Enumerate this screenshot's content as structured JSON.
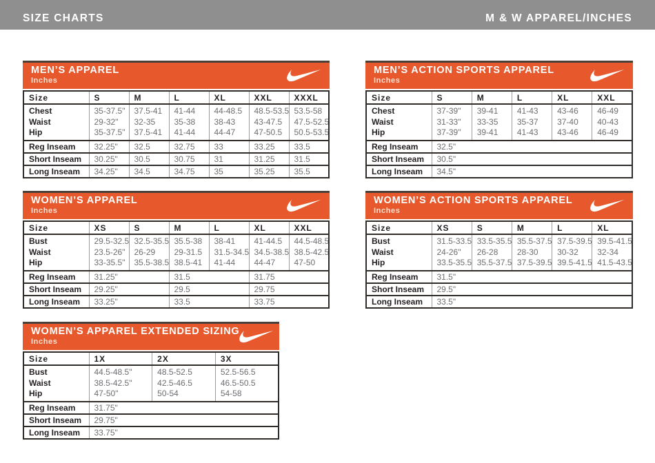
{
  "colors": {
    "accent_orange": "#e7582c",
    "bar_gray": "#8f8f8f",
    "border_dark": "#2e2b29",
    "grid_gray": "#9b9b9b",
    "label_text": "#231f20",
    "value_text": "#6d6e71"
  },
  "header": {
    "left": "SIZE CHARTS",
    "right": "M & W APPAREL/INCHES"
  },
  "logo_icon": "nike-swoosh-icon",
  "tables": [
    {
      "title": "MEN’S APPAREL",
      "subtitle": "Inches",
      "columns": [
        "Size",
        "S",
        "M",
        "L",
        "XL",
        "XXL",
        "XXXL"
      ],
      "measurements": {
        "labels": [
          "Chest",
          "Waist",
          "Hip"
        ],
        "values": [
          [
            "35-37.5\"",
            "29-32\"",
            "35-37.5\""
          ],
          [
            "37.5-41",
            "32-35",
            "37.5-41"
          ],
          [
            "41-44",
            "35-38",
            "41-44"
          ],
          [
            "44-48.5",
            "38-43",
            "44-47"
          ],
          [
            "48.5-53.5",
            "43-47.5",
            "47-50.5"
          ],
          [
            "53.5-58",
            "47.5-52.5",
            "50.5-53.5"
          ]
        ]
      },
      "inseams": [
        {
          "label": "Reg Inseam",
          "span": 1,
          "values": [
            "32.25\"",
            "32.5",
            "32.75",
            "33",
            "33.25",
            "33.5"
          ]
        },
        {
          "label": "Short Inseam",
          "span": 1,
          "values": [
            "30.25\"",
            "30.5",
            "30.75",
            "31",
            "31.25",
            "31.5"
          ]
        },
        {
          "label": "Long Inseam",
          "span": 1,
          "values": [
            "34.25\"",
            "34.5",
            "34.75",
            "35",
            "35.25",
            "35.5"
          ]
        }
      ]
    },
    {
      "title": "MEN’S ACTION SPORTS APPAREL",
      "subtitle": "Inches",
      "columns": [
        "Size",
        "S",
        "M",
        "L",
        "XL",
        "XXL"
      ],
      "measurements": {
        "labels": [
          "Chest",
          "Waist",
          "Hip"
        ],
        "values": [
          [
            "37-39\"",
            "31-33\"",
            "37-39\""
          ],
          [
            "39-41",
            "33-35",
            "39-41"
          ],
          [
            "41-43",
            "35-37",
            "41-43"
          ],
          [
            "43-46",
            "37-40",
            "43-46"
          ],
          [
            "46-49",
            "40-43",
            "46-49"
          ]
        ]
      },
      "inseams": [
        {
          "label": "Reg Inseam",
          "span": 5,
          "values": [
            "32.5\""
          ]
        },
        {
          "label": "Short Inseam",
          "span": 5,
          "values": [
            "30.5\""
          ]
        },
        {
          "label": "Long Inseam",
          "span": 5,
          "values": [
            "34.5\""
          ]
        }
      ]
    },
    {
      "title": "WOMEN’S APPAREL",
      "subtitle": "Inches",
      "columns": [
        "Size",
        "XS",
        "S",
        "M",
        "L",
        "XL",
        "XXL"
      ],
      "measurements": {
        "labels": [
          "Bust",
          "Waist",
          "Hip"
        ],
        "values": [
          [
            "29.5-32.5\"",
            "23.5-26\"",
            "33-35.5\""
          ],
          [
            "32.5-35.5",
            "26-29",
            "35.5-38.5"
          ],
          [
            "35.5-38",
            "29-31.5",
            "38.5-41"
          ],
          [
            "38-41",
            "31.5-34.5",
            "41-44"
          ],
          [
            "41-44.5",
            "34.5-38.5",
            "44-47"
          ],
          [
            "44.5-48.5",
            "38.5-42.5",
            "47-50"
          ]
        ]
      },
      "inseams": [
        {
          "label": "Reg Inseam",
          "span": 2,
          "values": [
            "31.25\"",
            "31.5",
            "31.75"
          ]
        },
        {
          "label": "Short Inseam",
          "span": 2,
          "values": [
            "29.25\"",
            "29.5",
            "29.75"
          ]
        },
        {
          "label": "Long Inseam",
          "span": 2,
          "values": [
            "33.25\"",
            "33.5",
            "33.75"
          ]
        }
      ]
    },
    {
      "title": "WOMEN’S ACTION SPORTS APPAREL",
      "subtitle": "Inches",
      "columns": [
        "Size",
        "XS",
        "S",
        "M",
        "L",
        "XL"
      ],
      "measurements": {
        "labels": [
          "Bust",
          "Waist",
          "Hip"
        ],
        "values": [
          [
            "31.5-33.5\"",
            "24-26\"",
            "33.5-35.5\""
          ],
          [
            "33.5-35.5",
            "26-28",
            "35.5-37.5"
          ],
          [
            "35.5-37.5",
            "28-30",
            "37.5-39.5"
          ],
          [
            "37.5-39.5",
            "30-32",
            "39.5-41.5"
          ],
          [
            "39.5-41.5",
            "32-34",
            "41.5-43.5"
          ]
        ]
      },
      "inseams": [
        {
          "label": "Reg Inseam",
          "span": 5,
          "values": [
            "31.5\""
          ]
        },
        {
          "label": "Short Inseam",
          "span": 5,
          "values": [
            "29.5\""
          ]
        },
        {
          "label": "Long Inseam",
          "span": 5,
          "values": [
            "33.5\""
          ]
        }
      ]
    },
    {
      "title": "WOMEN’S APPAREL EXTENDED SIZING",
      "subtitle": "Inches",
      "columns": [
        "Size",
        "1X",
        "2X",
        "3X"
      ],
      "measurements": {
        "labels": [
          "Bust",
          "Waist",
          "Hip"
        ],
        "values": [
          [
            "44.5-48.5\"",
            "38.5-42.5\"",
            "47-50\""
          ],
          [
            "48.5-52.5",
            "42.5-46.5",
            "50-54"
          ],
          [
            "52.5-56.5",
            "46.5-50.5",
            "54-58"
          ]
        ]
      },
      "inseams": [
        {
          "label": "Reg Inseam",
          "span": 3,
          "values": [
            "31.75\""
          ]
        },
        {
          "label": "Short Inseam",
          "span": 3,
          "values": [
            "29.75\""
          ]
        },
        {
          "label": "Long Inseam",
          "span": 3,
          "values": [
            "33.75\""
          ]
        }
      ]
    }
  ]
}
